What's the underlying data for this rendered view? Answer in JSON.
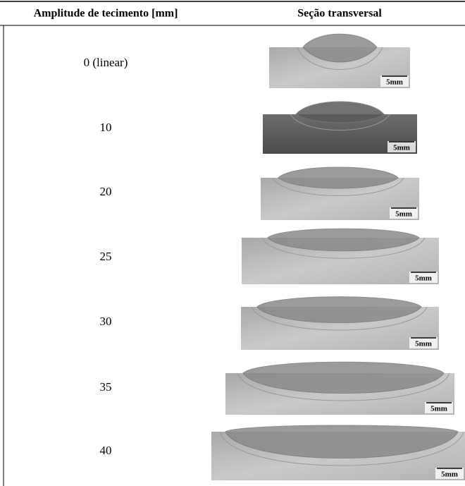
{
  "table": {
    "header": [
      "Amplitude de tecimento [mm]",
      "Seção transversal"
    ],
    "rows": [
      {
        "amplitude": "0 (linear)",
        "scale": "5mm"
      },
      {
        "amplitude": "10",
        "scale": "5mm"
      },
      {
        "amplitude": "20",
        "scale": "5mm"
      },
      {
        "amplitude": "25",
        "scale": "5mm"
      },
      {
        "amplitude": "30",
        "scale": "5mm"
      },
      {
        "amplitude": "35",
        "scale": "5mm"
      },
      {
        "amplitude": "40",
        "scale": "5mm"
      }
    ]
  }
}
